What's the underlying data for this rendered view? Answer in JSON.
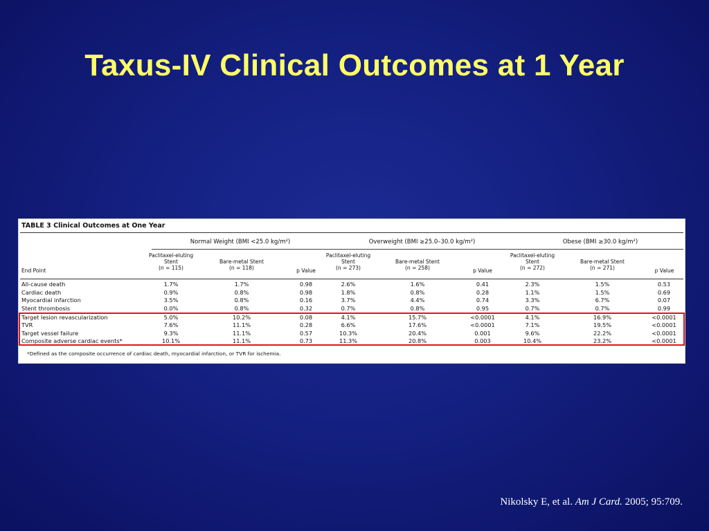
{
  "slide": {
    "title": "Taxus-IV Clinical Outcomes at 1 Year"
  },
  "table": {
    "title": "TABLE 3  Clinical Outcomes at One Year",
    "groups": [
      "Normal Weight (BMI <25.0 kg/m²)",
      "Overweight (BMI ≥25.0–30.0 kg/m²)",
      "Obese (BMI ≥30.0 kg/m²)"
    ],
    "columns": [
      "End Point",
      "Paclitaxel-eluting\nStent\n(n = 115)",
      "Bare-metal Stent\n(n = 118)",
      "p Value",
      "Paclitaxel-eluting\nStent\n(n = 273)",
      "Bare-metal Stent\n(n = 258)",
      "p Value",
      "Paclitaxel-eluting\nStent\n(n = 272)",
      "Bare-metal Stent\n(n = 271)",
      "p Value"
    ],
    "rows": [
      [
        "All-cause death",
        "1.7%",
        "1.7%",
        "0.98",
        "2.6%",
        "1.6%",
        "0.41",
        "2.3%",
        "1.5%",
        "0.53"
      ],
      [
        "Cardiac death",
        "0.9%",
        "0.8%",
        "0.98",
        "1.8%",
        "0.8%",
        "0.28",
        "1.1%",
        "1.5%",
        "0.69"
      ],
      [
        "Myocardial infarction",
        "3.5%",
        "0.8%",
        "0.16",
        "3.7%",
        "4.4%",
        "0.74",
        "3.3%",
        "6.7%",
        "0.07"
      ],
      [
        "Stent thrombosis",
        "0.0%",
        "0.8%",
        "0.32",
        "0.7%",
        "0.8%",
        "0.95",
        "0.7%",
        "0.7%",
        "0.99"
      ],
      [
        "Target lesion revascularization",
        "5.0%",
        "10.2%",
        "0.08",
        "4.1%",
        "15.7%",
        "<0.0001",
        "4.1%",
        "16.9%",
        "<0.0001"
      ],
      [
        "TVR",
        "7.6%",
        "11.1%",
        "0.28",
        "6.6%",
        "17.6%",
        "<0.0001",
        "7.1%",
        "19.5%",
        "<0.0001"
      ],
      [
        "Target vessel failure",
        "9.3%",
        "11.1%",
        "0.57",
        "10.3%",
        "20.4%",
        "0.001",
        "9.6%",
        "22.2%",
        "<0.0001"
      ],
      [
        "Composite adverse cardiac events*",
        "10.1%",
        "11.1%",
        "0.73",
        "11.3%",
        "20.8%",
        "0.003",
        "10.4%",
        "23.2%",
        "<0.0001"
      ]
    ],
    "footnote": "*Defined as the composite occurrence of cardiac death, myocardial infarction, or TVR for ischemia.",
    "highlight_color": "#e0141e"
  },
  "citation": {
    "authors": "Nikolsky E, et al.",
    "journal": "Am J Card.",
    "details": "2005; 95:709."
  },
  "colors": {
    "background": "#142081",
    "title": "#ffff66",
    "citation": "#ffffff"
  }
}
